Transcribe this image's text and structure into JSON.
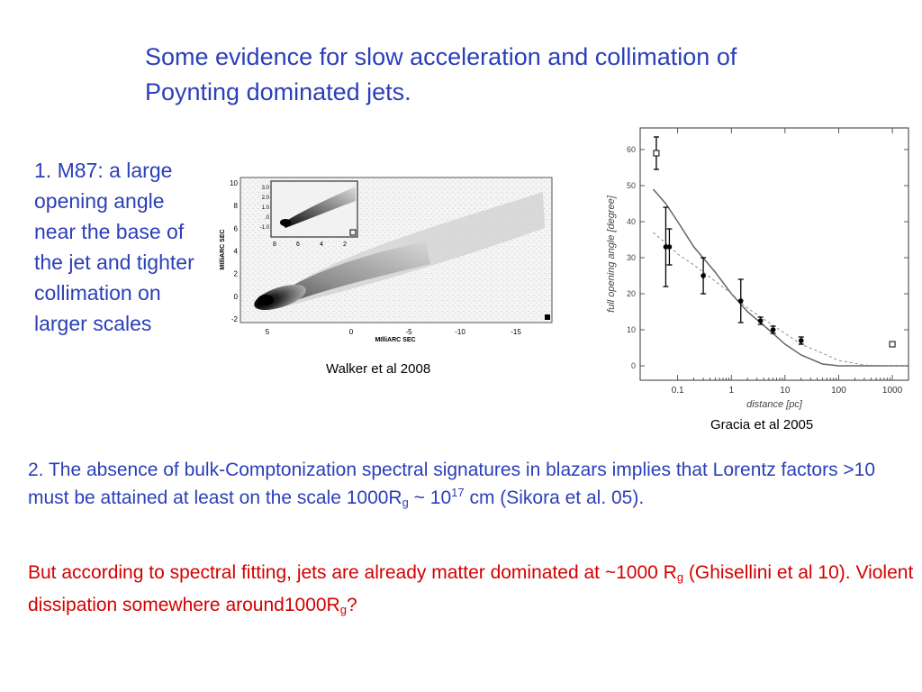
{
  "slide": {
    "title": "Some evidence for slow acceleration and collimation of Poynting dominated jets.",
    "point1": "1. M87: a large opening angle near the base of the jet and tighter collimation on larger scales",
    "point2": {
      "part1": "2. The absence of bulk-Comptonization spectral signatures in blazars implies that Lorentz factors  >10 must be attained at least on the scale 1000R",
      "sub1": "g",
      "part2": " ~ 10",
      "sup1": "17",
      "part3": " cm (Sikora et al. 05)."
    },
    "point3": {
      "part1": "But according to spectral fitting, jets are already matter dominated at ~1000 R",
      "sub1": "g",
      "part2": " (Ghisellini et al 10). Violent dissipation somewhere around1000R",
      "sub2": "g",
      "part3": "?"
    },
    "colors": {
      "title": "#2b3fb8",
      "body": "#2b3fb8",
      "highlight": "#d40000"
    }
  },
  "walker_figure": {
    "caption": "Walker et al 2008",
    "xlabel": "MIlliARC SEC",
    "ylabel": "MIlliARC SEC",
    "x_ticks": [
      "5",
      "0",
      "-5",
      "-10",
      "-15"
    ],
    "y_ticks": [
      "10",
      "8",
      "6",
      "4",
      "2",
      "0",
      "-2"
    ],
    "inset_y_ticks": [
      "3.0",
      "2.0",
      "1.0",
      ".0",
      "-1.0"
    ],
    "inset_x_ticks": [
      "8",
      "6",
      "4",
      "2"
    ]
  },
  "chart_data": {
    "type": "scatter",
    "caption": "Gracia et al 2005",
    "xlabel": "distance [pc]",
    "ylabel": "full opening angle [degree]",
    "x_scale": "log",
    "xlim": [
      0.02,
      2000
    ],
    "ylim": [
      -4,
      66
    ],
    "x_ticks": [
      "0.1",
      "1",
      "10",
      "100",
      "1000"
    ],
    "y_ticks": [
      "0",
      "10",
      "20",
      "30",
      "40",
      "50",
      "60"
    ],
    "series": [
      {
        "marker": "filled-circle",
        "points": [
          {
            "x": 0.06,
            "y": 33,
            "err": 11
          },
          {
            "x": 0.07,
            "y": 33,
            "err": 5
          },
          {
            "x": 0.3,
            "y": 25,
            "err": 5
          },
          {
            "x": 1.5,
            "y": 18,
            "err": 6
          },
          {
            "x": 3.5,
            "y": 12.5,
            "err": 1
          },
          {
            "x": 6,
            "y": 10,
            "err": 1
          },
          {
            "x": 20,
            "y": 7,
            "err": 1
          }
        ]
      },
      {
        "marker": "open-square",
        "points": [
          {
            "x": 0.04,
            "y": 59,
            "err": 4.5
          },
          {
            "x": 1000,
            "y": 6,
            "err": 0.5
          }
        ]
      }
    ],
    "curves": [
      {
        "style": "solid",
        "points": [
          [
            0.035,
            49
          ],
          [
            0.06,
            45
          ],
          [
            0.1,
            40
          ],
          [
            0.2,
            33
          ],
          [
            0.5,
            26
          ],
          [
            1,
            20
          ],
          [
            2,
            15
          ],
          [
            5,
            10
          ],
          [
            10,
            6
          ],
          [
            20,
            3
          ],
          [
            50,
            0.5
          ],
          [
            100,
            0
          ],
          [
            300,
            0
          ],
          [
            1000,
            0
          ],
          [
            2000,
            0
          ]
        ]
      },
      {
        "style": "dashed",
        "points": [
          [
            0.035,
            37
          ],
          [
            0.06,
            34
          ],
          [
            0.1,
            31
          ],
          [
            0.2,
            28
          ],
          [
            0.5,
            23.5
          ],
          [
            1,
            20
          ],
          [
            2,
            16
          ],
          [
            5,
            12
          ],
          [
            10,
            9
          ],
          [
            20,
            6
          ],
          [
            50,
            3.5
          ],
          [
            100,
            1.5
          ],
          [
            300,
            0.2
          ],
          [
            1000,
            0
          ],
          [
            2000,
            0
          ]
        ]
      }
    ]
  }
}
